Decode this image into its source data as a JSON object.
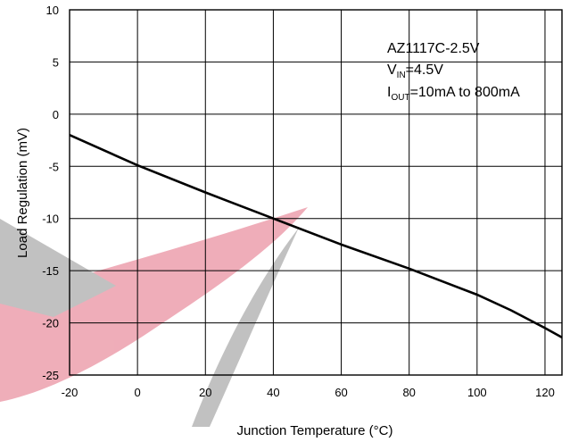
{
  "chart_data": {
    "type": "line",
    "xlabel": "Junction Temperature (°C)",
    "ylabel": "Load Regulation (mV)",
    "xlim": [
      -20,
      125
    ],
    "ylim": [
      -25,
      10
    ],
    "x_ticks": [
      "-20",
      "0",
      "20",
      "40",
      "60",
      "80",
      "100",
      "120"
    ],
    "y_ticks": [
      "10",
      "5",
      "0",
      "-5",
      "-10",
      "-15",
      "-20",
      "-25"
    ],
    "grid": true,
    "annotation": {
      "line1": "AZ1117C-2.5V",
      "line2_main": "V",
      "line2_sub": "IN",
      "line2_rest": "=4.5V",
      "line3_main": "I",
      "line3_sub": "OUT",
      "line3_rest": "=10mA to 800mA"
    },
    "series": [
      {
        "color": "#000000",
        "x": [
          -20,
          0,
          20,
          40,
          60,
          80,
          100,
          110,
          120,
          125
        ],
        "y": [
          -2.0,
          -4.9,
          -7.5,
          -10.0,
          -12.5,
          -14.8,
          -17.3,
          -18.8,
          -20.5,
          -21.4
        ]
      }
    ]
  }
}
